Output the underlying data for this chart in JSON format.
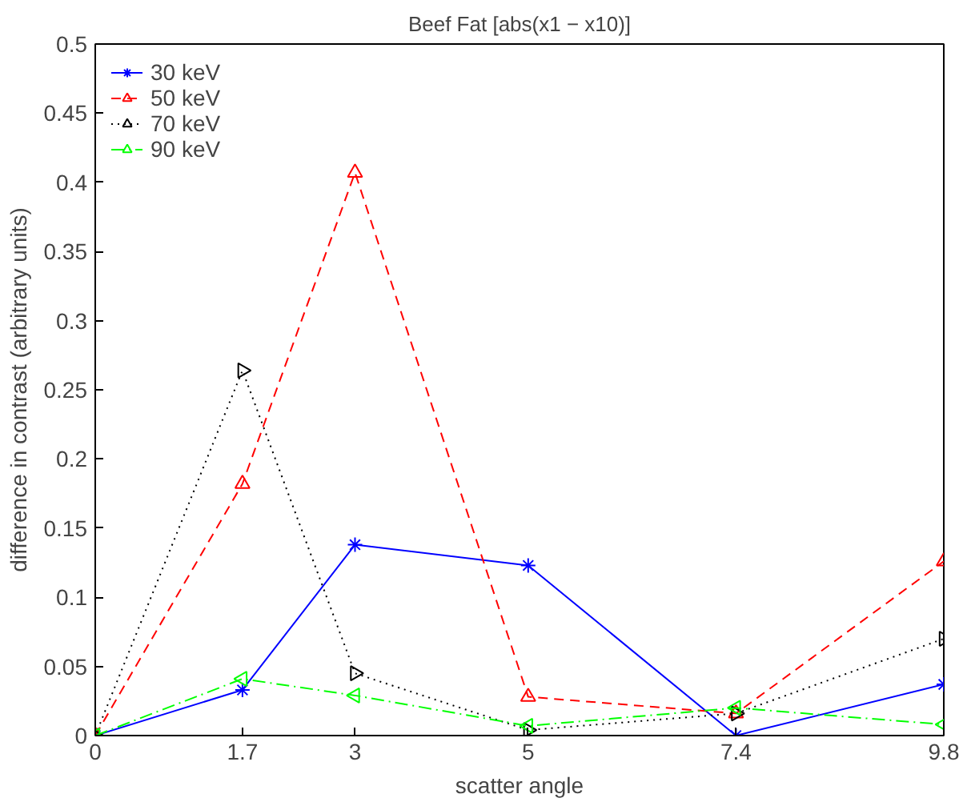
{
  "chart_data": {
    "type": "line",
    "title": "Beef Fat [abs(x1 − x10)]",
    "xlabel": "scatter angle",
    "ylabel": "difference in contrast (arbitrary units)",
    "x": [
      0,
      1.7,
      3,
      5,
      7.4,
      9.8
    ],
    "series": [
      {
        "name": "30 keV",
        "color": "#0000ff",
        "marker": "cross",
        "line_style": "solid",
        "values": [
          0,
          0.033,
          0.138,
          0.123,
          0,
          0.037
        ]
      },
      {
        "name": "50 keV",
        "color": "#ff0000",
        "marker": "triangle",
        "line_style": "dashed",
        "values": [
          0,
          0.182,
          0.407,
          0.028,
          0.016,
          0.126
        ]
      },
      {
        "name": "70 keV",
        "color": "#000000",
        "marker": "triangle-right",
        "line_style": "dotted",
        "values": [
          0,
          0.264,
          0.045,
          0.004,
          0.016,
          0.07
        ]
      },
      {
        "name": "90 keV",
        "color": "#00ff00",
        "marker": "triangle-left",
        "line_style": "dashdot",
        "values": [
          0,
          0.041,
          0.029,
          0.007,
          0.02,
          0.008
        ]
      }
    ],
    "xlim": [
      0,
      9.8
    ],
    "xticks": [
      0,
      1.7,
      3,
      5,
      7.4,
      9.8
    ],
    "ylim": [
      0,
      0.5
    ],
    "yticks": [
      0,
      0.05,
      0.1,
      0.15,
      0.2,
      0.25,
      0.3,
      0.35,
      0.4,
      0.45,
      0.5
    ],
    "grid": false,
    "legend": "top left"
  }
}
